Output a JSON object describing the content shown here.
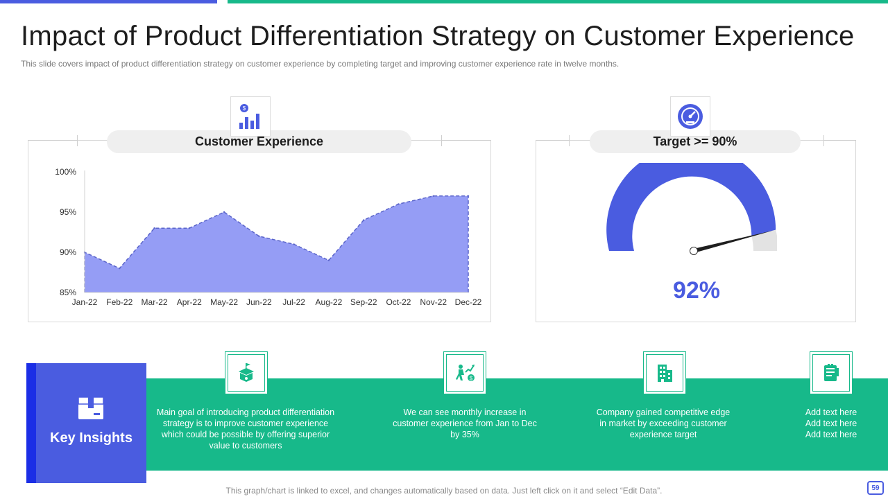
{
  "slide": {
    "title": "Impact of Product Differentiation Strategy on Customer Experience",
    "subtitle": "This slide covers impact of product differentiation  strategy on customer experience by completing target and improving  customer experience rate in twelve  months.",
    "footer_note": "This graph/chart is linked to excel, and changes automatically based on data. Just left click on it and select “Edit Data”.",
    "page_number": "59"
  },
  "colors": {
    "accent_blue": "#4a5ce0",
    "accent_green": "#17b98a",
    "area_fill": "#959df5",
    "gauge_rest": "#e3e3e3"
  },
  "left_panel": {
    "heading": "Customer Experience",
    "icon": "finance-bar-chart-icon"
  },
  "right_panel": {
    "heading": "Target >= 90%",
    "icon": "speedometer-icon"
  },
  "chart_data": {
    "type": "area",
    "title": "Customer Experience",
    "categories": [
      "Jan-22",
      "Feb-22",
      "Mar-22",
      "Apr-22",
      "May-22",
      "Jun-22",
      "Jul-22",
      "Aug-22",
      "Sep-22",
      "Oct-22",
      "Nov-22",
      "Dec-22"
    ],
    "series": [
      {
        "name": "Customer Experience",
        "values": [
          90,
          88,
          93,
          93,
          95,
          92,
          91,
          89,
          94,
          96,
          97,
          97
        ]
      }
    ],
    "ylim": [
      85,
      100
    ],
    "yticks": [
      85,
      90,
      95,
      100
    ],
    "ytick_labels": [
      "85%",
      "90%",
      "95%",
      "100%"
    ],
    "xlabel": "",
    "ylabel": ""
  },
  "gauge": {
    "value": 92,
    "display": "92%",
    "max": 100,
    "target_label": "Target >= 90%"
  },
  "key_insights": {
    "title": "Key Insights",
    "icon": "open-box-icon",
    "items": [
      {
        "icon": "box-delivery-icon",
        "text": "Main goal of introducing product differentiation\nstrategy is to improve  customer experience\nwhich could be possible by offering  superior\nvalue to customers"
      },
      {
        "icon": "growth-climb-icon",
        "text": "We can see monthly increase in\ncustomer experience  from Jan to Dec\nby 35%"
      },
      {
        "icon": "office-building-icon",
        "text": "Company gained competitive edge\nin market by exceeding customer\nexperience target"
      },
      {
        "icon": "report-document-icon",
        "text": "Add text here\nAdd text here\nAdd text here"
      }
    ]
  }
}
